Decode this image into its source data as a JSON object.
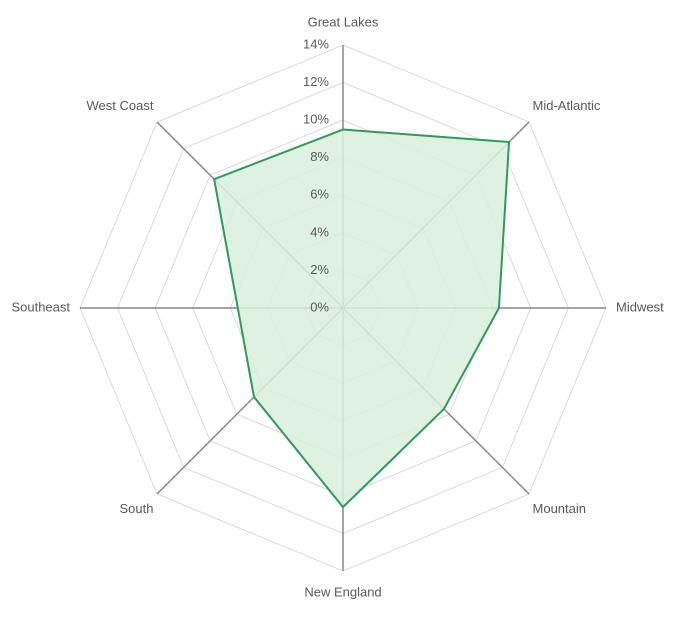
{
  "chart_data": {
    "type": "radar",
    "categories": [
      "Great Lakes",
      "Mid-Atlantic",
      "Midwest",
      "Mountain",
      "New England",
      "South",
      "Southeast",
      "West Coast"
    ],
    "values": [
      9.5,
      12.5,
      8.3,
      7.6,
      10.6,
      6.7,
      5.6,
      9.7
    ],
    "color": "#2e9b5a",
    "fill": "#d9eedc",
    "ylim": [
      0,
      14
    ],
    "yticks": [
      {
        "value": 0,
        "label": "0%"
      },
      {
        "value": 2,
        "label": "2%"
      },
      {
        "value": 4,
        "label": "4%"
      },
      {
        "value": 6,
        "label": "6%"
      },
      {
        "value": 8,
        "label": "8%"
      },
      {
        "value": 10,
        "label": "10%"
      },
      {
        "value": 12,
        "label": "12%"
      },
      {
        "value": 14,
        "label": "14%"
      }
    ],
    "grid": true
  }
}
